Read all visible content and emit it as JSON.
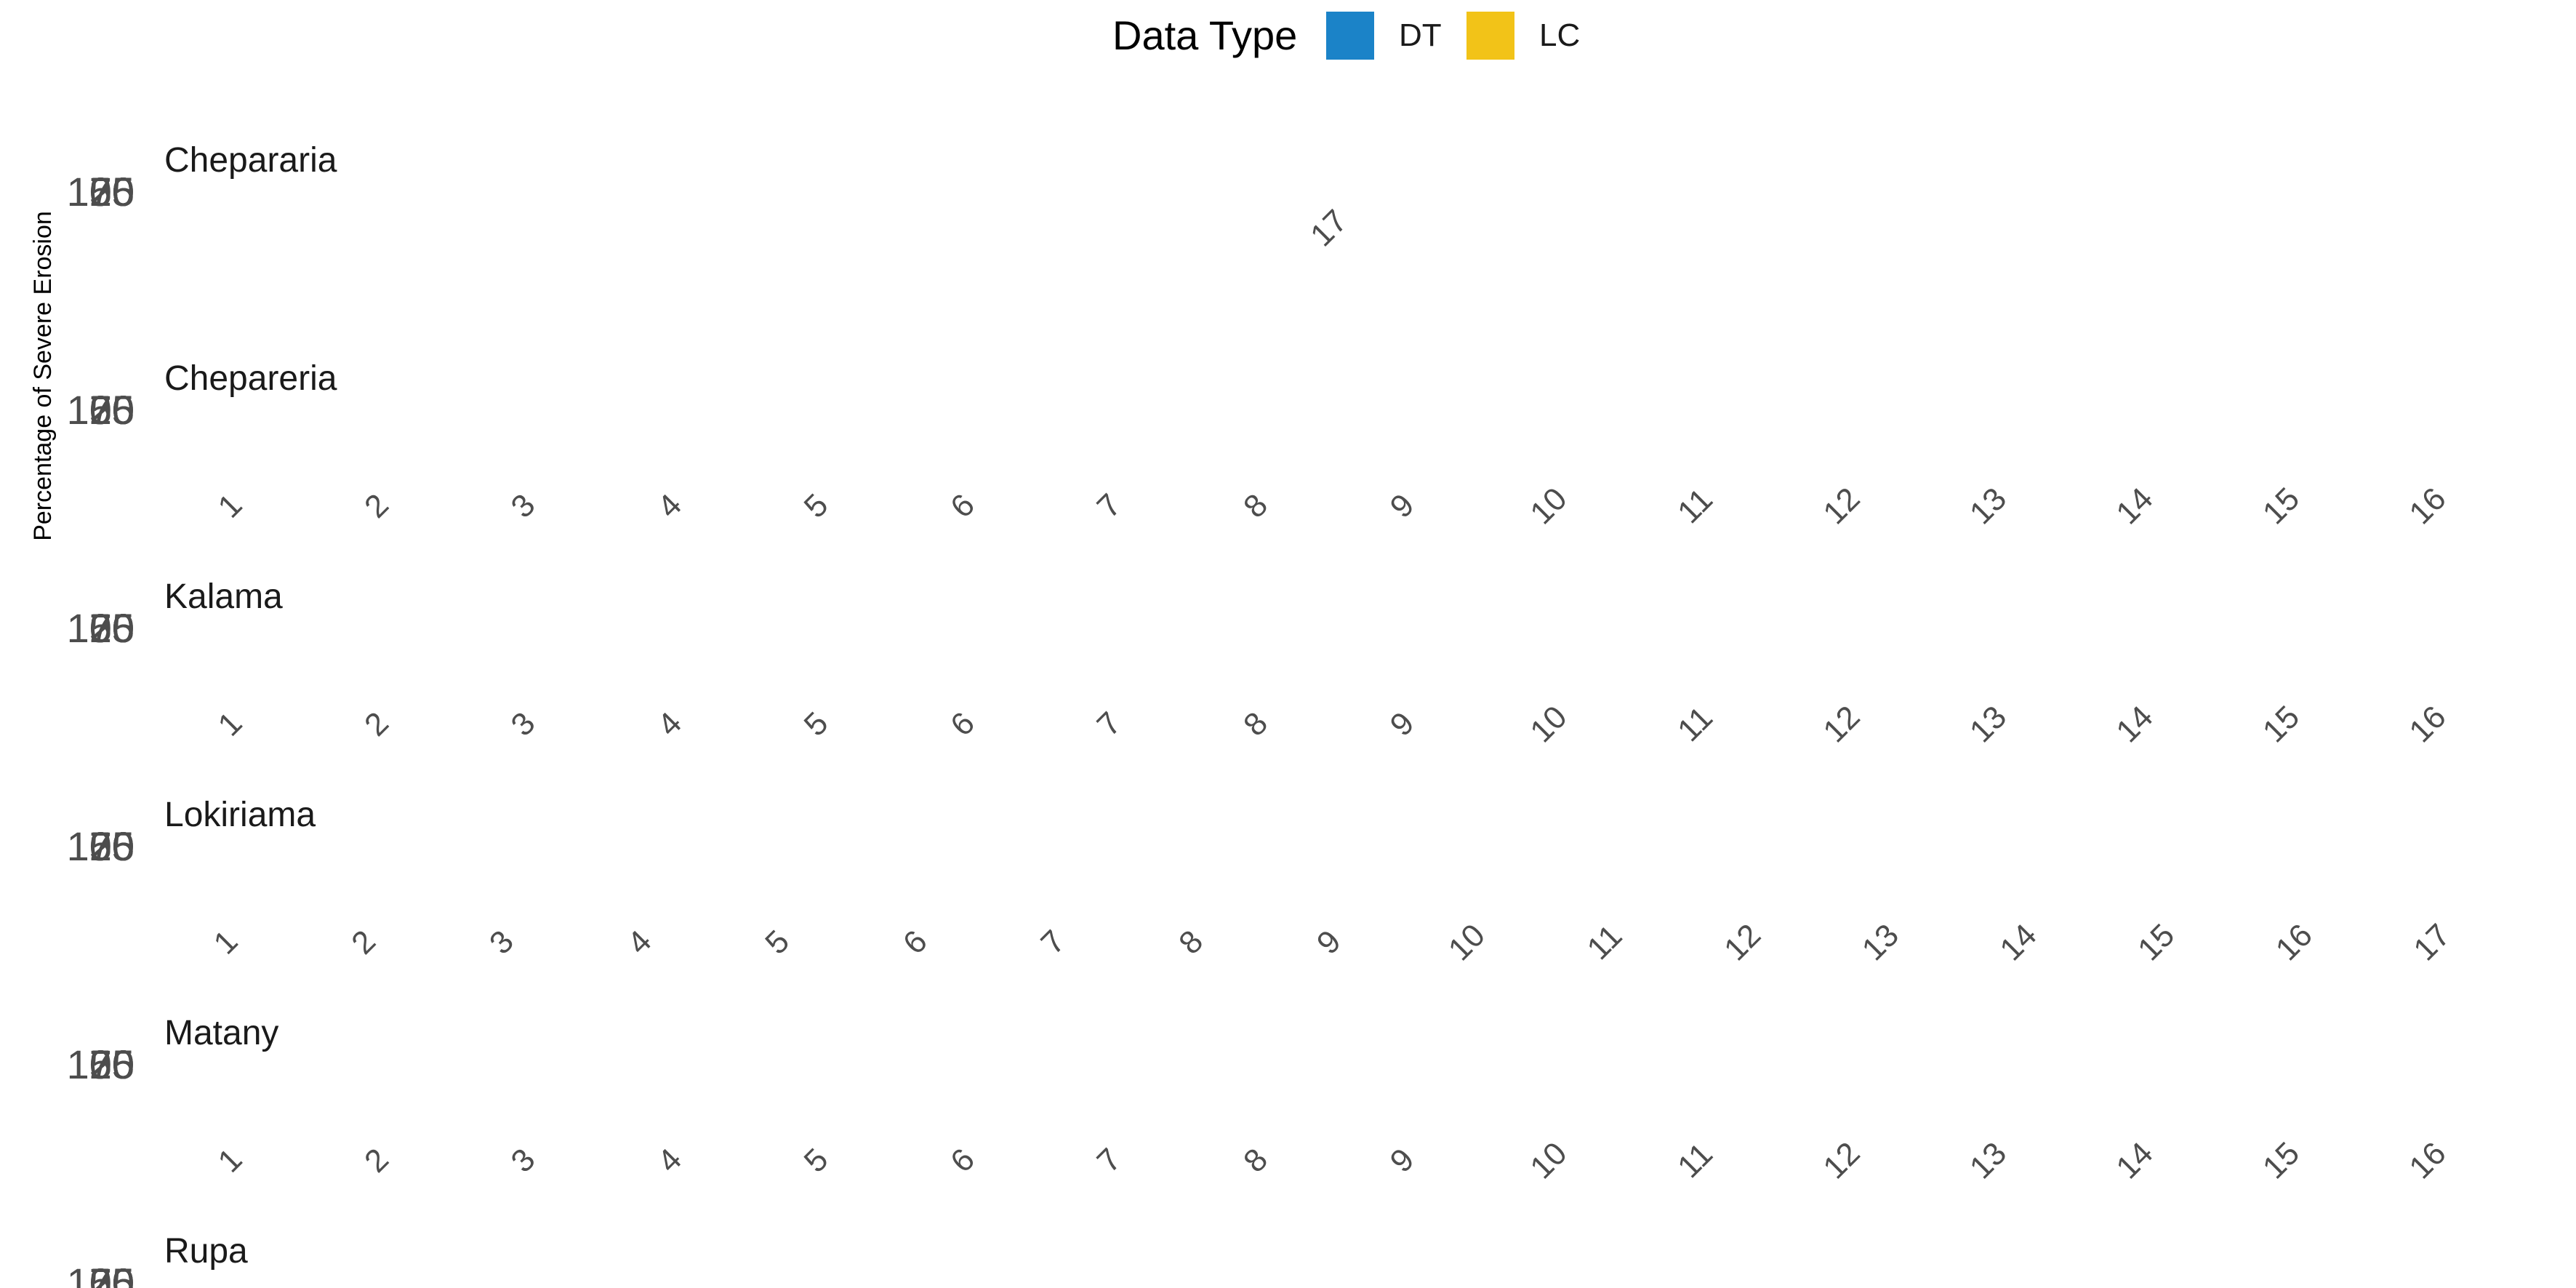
{
  "chart_data": {
    "type": "bar",
    "ylabel": "Percentage of Severe Erosion",
    "legend": {
      "title": "Data Type",
      "position": "top",
      "entries": [
        {
          "label": "DT",
          "color": "#1B83C8"
        },
        {
          "label": "LC",
          "color": "#F2C318"
        }
      ]
    },
    "grid": false,
    "panels": [
      {
        "name": "Chepararia",
        "categories": [
          "17"
        ],
        "y_ticks": [
          "100",
          "75",
          "50",
          "25",
          "0"
        ]
      },
      {
        "name": "Chepareria",
        "categories": [
          "1",
          "2",
          "3",
          "4",
          "5",
          "6",
          "7",
          "8",
          "9",
          "10",
          "11",
          "12",
          "13",
          "14",
          "15",
          "16"
        ],
        "y_ticks": [
          "100",
          "75",
          "50",
          "25",
          "0"
        ]
      },
      {
        "name": "Kalama",
        "categories": [
          "1",
          "2",
          "3",
          "4",
          "5",
          "6",
          "7",
          "8",
          "9",
          "10",
          "11",
          "12",
          "13",
          "14",
          "15",
          "16"
        ],
        "y_ticks": [
          "100",
          "75",
          "50",
          "25",
          "0"
        ]
      },
      {
        "name": "Lokiriama",
        "categories": [
          "1",
          "2",
          "3",
          "4",
          "5",
          "6",
          "7",
          "8",
          "9",
          "10",
          "11",
          "12",
          "13",
          "14",
          "15",
          "16",
          "17"
        ],
        "y_ticks": [
          "100",
          "75",
          "50",
          "25",
          "0"
        ]
      },
      {
        "name": "Matany",
        "categories": [
          "1",
          "2",
          "3",
          "4",
          "5",
          "6",
          "7",
          "8",
          "9",
          "10",
          "11",
          "12",
          "13",
          "14",
          "15",
          "16"
        ],
        "y_ticks": [
          "100",
          "75",
          "50",
          "25",
          "0"
        ]
      },
      {
        "name": "Rupa",
        "categories": [],
        "y_ticks": [
          "100",
          "75",
          "50",
          "25",
          "0"
        ]
      }
    ]
  }
}
